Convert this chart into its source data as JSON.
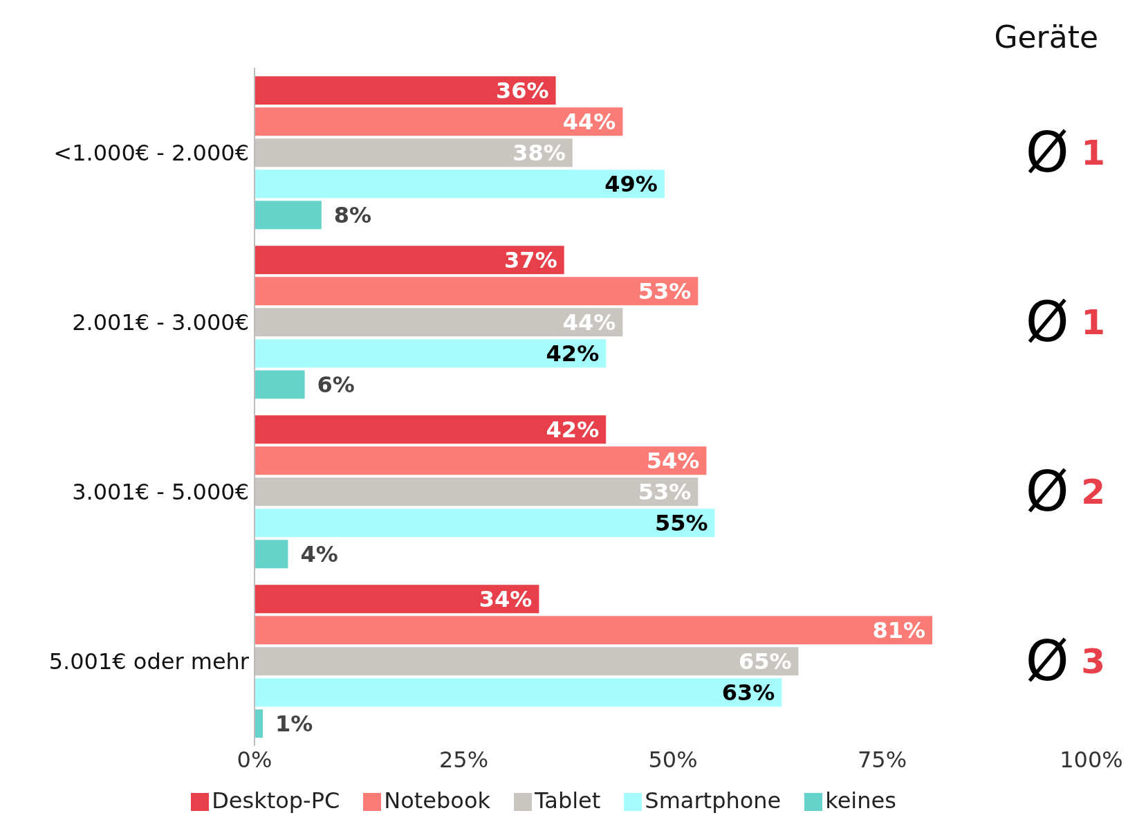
{
  "chart_data": {
    "type": "bar",
    "orientation": "horizontal",
    "categories": [
      "<1.000€ - 2.000€",
      "2.001€ - 3.000€",
      "3.001€ - 5.000€",
      "5.001€ oder mehr"
    ],
    "series": [
      {
        "name": "Desktop-PC",
        "color": "#e8404a",
        "values": [
          36,
          37,
          42,
          34
        ],
        "value_labels": [
          "36%",
          "37%",
          "42%",
          "34%"
        ]
      },
      {
        "name": "Notebook",
        "color": "#fb7b77",
        "values": [
          44,
          53,
          54,
          81
        ],
        "value_labels": [
          "44%",
          "53%",
          "54%",
          "81%"
        ]
      },
      {
        "name": "Tablet",
        "color": "#c9c5c1",
        "values": [
          38,
          44,
          53,
          65
        ],
        "value_labels": [
          "38%",
          "44%",
          "53%",
          "65%"
        ]
      },
      {
        "name": "Smartphone",
        "color": "#a6fbfd",
        "values": [
          49,
          42,
          55,
          63
        ],
        "value_labels": [
          "49%",
          "42%",
          "55%",
          "63%"
        ]
      },
      {
        "name": "keines",
        "color": "#66d3cb",
        "values": [
          8,
          6,
          4,
          1
        ],
        "value_labels": [
          "8%",
          "6%",
          "4%",
          "1%"
        ]
      }
    ],
    "xlim": [
      0,
      100
    ],
    "xticks": [
      {
        "value": 0,
        "label": "0%"
      },
      {
        "value": 25,
        "label": "25%"
      },
      {
        "value": 50,
        "label": "50%"
      },
      {
        "value": 75,
        "label": "75%"
      },
      {
        "value": 100,
        "label": "100%"
      }
    ],
    "grid": false,
    "legend": "bottom",
    "annotations": [
      "Geräte",
      "Ø 1",
      "Ø 1",
      "Ø 2",
      "Ø 3"
    ]
  }
}
